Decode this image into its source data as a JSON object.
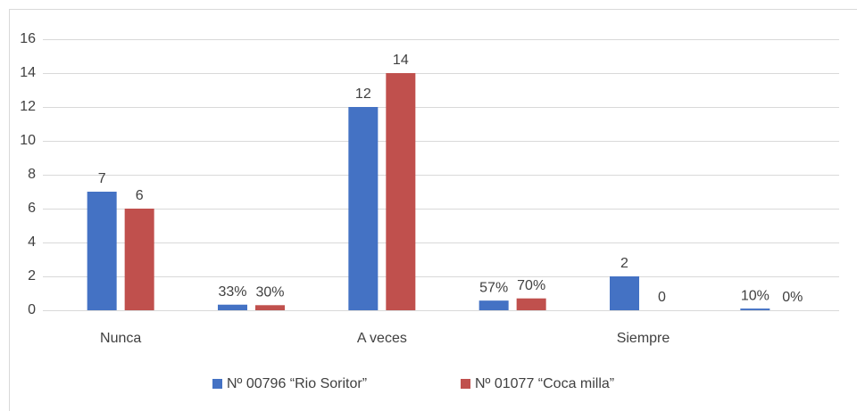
{
  "chart_data": {
    "type": "bar",
    "categories": [
      "Nunca",
      null,
      "A veces",
      null,
      "Siempre",
      null
    ],
    "series": [
      {
        "name": "Nº 00796 “Rio Soritor”",
        "color": "#4472c4",
        "values": [
          7,
          0.33,
          12,
          0.57,
          2,
          0.1
        ],
        "value_labels": [
          "7",
          "33%",
          "12",
          "57%",
          "2",
          "10%"
        ]
      },
      {
        "name": "Nº 01077 “Coca milla”",
        "color": "#c0504d",
        "values": [
          6,
          0.3,
          14,
          0.7,
          0,
          0
        ],
        "value_labels": [
          "6",
          "30%",
          "14",
          "70%",
          "0",
          "0%"
        ]
      }
    ],
    "ylim": [
      0,
      16
    ],
    "yticks": [
      0,
      2,
      4,
      6,
      8,
      10,
      12,
      14,
      16
    ],
    "grid": true,
    "legend": "bottom"
  }
}
